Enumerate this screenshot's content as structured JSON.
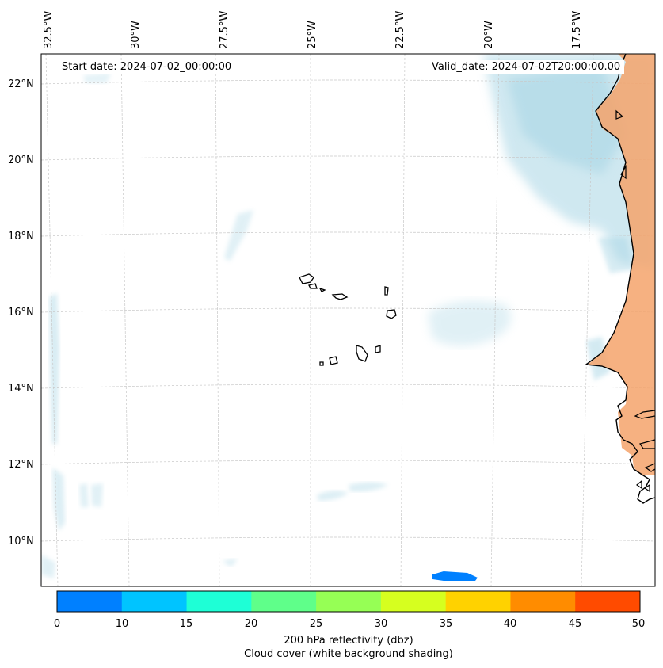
{
  "map": {
    "longitude_labels": [
      "32.5°W",
      "30°W",
      "27.5°W",
      "25°W",
      "22.5°W",
      "20°W",
      "17.5°W"
    ],
    "latitude_labels": [
      "22°N",
      "20°N",
      "18°N",
      "16°N",
      "14°N",
      "12°N",
      "10°N"
    ],
    "start_date": "Start date: 2024-07-02_00:00:00",
    "valid_date": "Valid_date: 2024-07-02T20:00:00.00",
    "land_color": "#f5a36b",
    "cloud_color": "#a9d6e5",
    "reflectivity_patch_color": "#0080ff"
  },
  "colorbar": {
    "ticks": [
      "0",
      "10",
      "15",
      "20",
      "25",
      "30",
      "35",
      "40",
      "45",
      "50"
    ],
    "colors": [
      "#0080ff",
      "#00c4ff",
      "#1effd6",
      "#5fff8a",
      "#96ff55",
      "#d6ff1f",
      "#ffd200",
      "#ff8c00",
      "#ff4b00"
    ],
    "label": "200 hPa reflectivity (dbz)",
    "sublabel": "Cloud cover (white background shading)"
  }
}
